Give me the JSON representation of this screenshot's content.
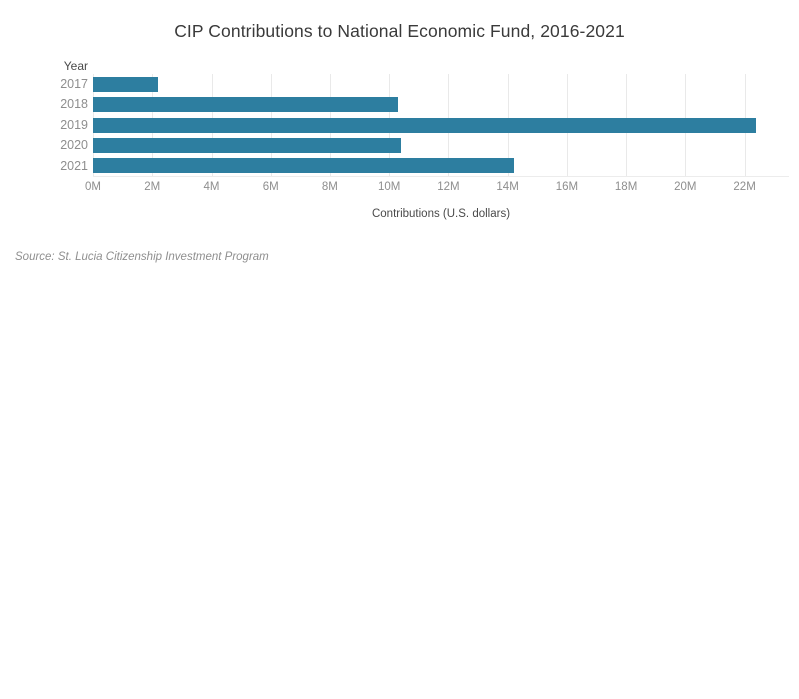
{
  "chart_data": {
    "type": "bar",
    "orientation": "horizontal",
    "title": "CIP Contributions to National Economic Fund, 2016-2021",
    "ylabel": "Year",
    "xlabel": "Contributions (U.S. dollars)",
    "source": "Source: St. Lucia Citizenship Investment Program",
    "categories": [
      "2017",
      "2018",
      "2019",
      "2020",
      "2021"
    ],
    "values": [
      2.2,
      10.3,
      22.4,
      10.4,
      14.2
    ],
    "unit": "millions of U.S. dollars",
    "xlim": [
      0,
      23.5
    ],
    "xticks": [
      0,
      2,
      4,
      6,
      8,
      10,
      12,
      14,
      16,
      18,
      20,
      22
    ],
    "xtick_labels": [
      "0M",
      "2M",
      "4M",
      "6M",
      "8M",
      "10M",
      "12M",
      "14M",
      "16M",
      "18M",
      "20M",
      "22M"
    ],
    "grid": "vertical-light",
    "legend": "none",
    "bar_color": "#2d7ea0",
    "gridline_color": "#e9e9e9"
  }
}
